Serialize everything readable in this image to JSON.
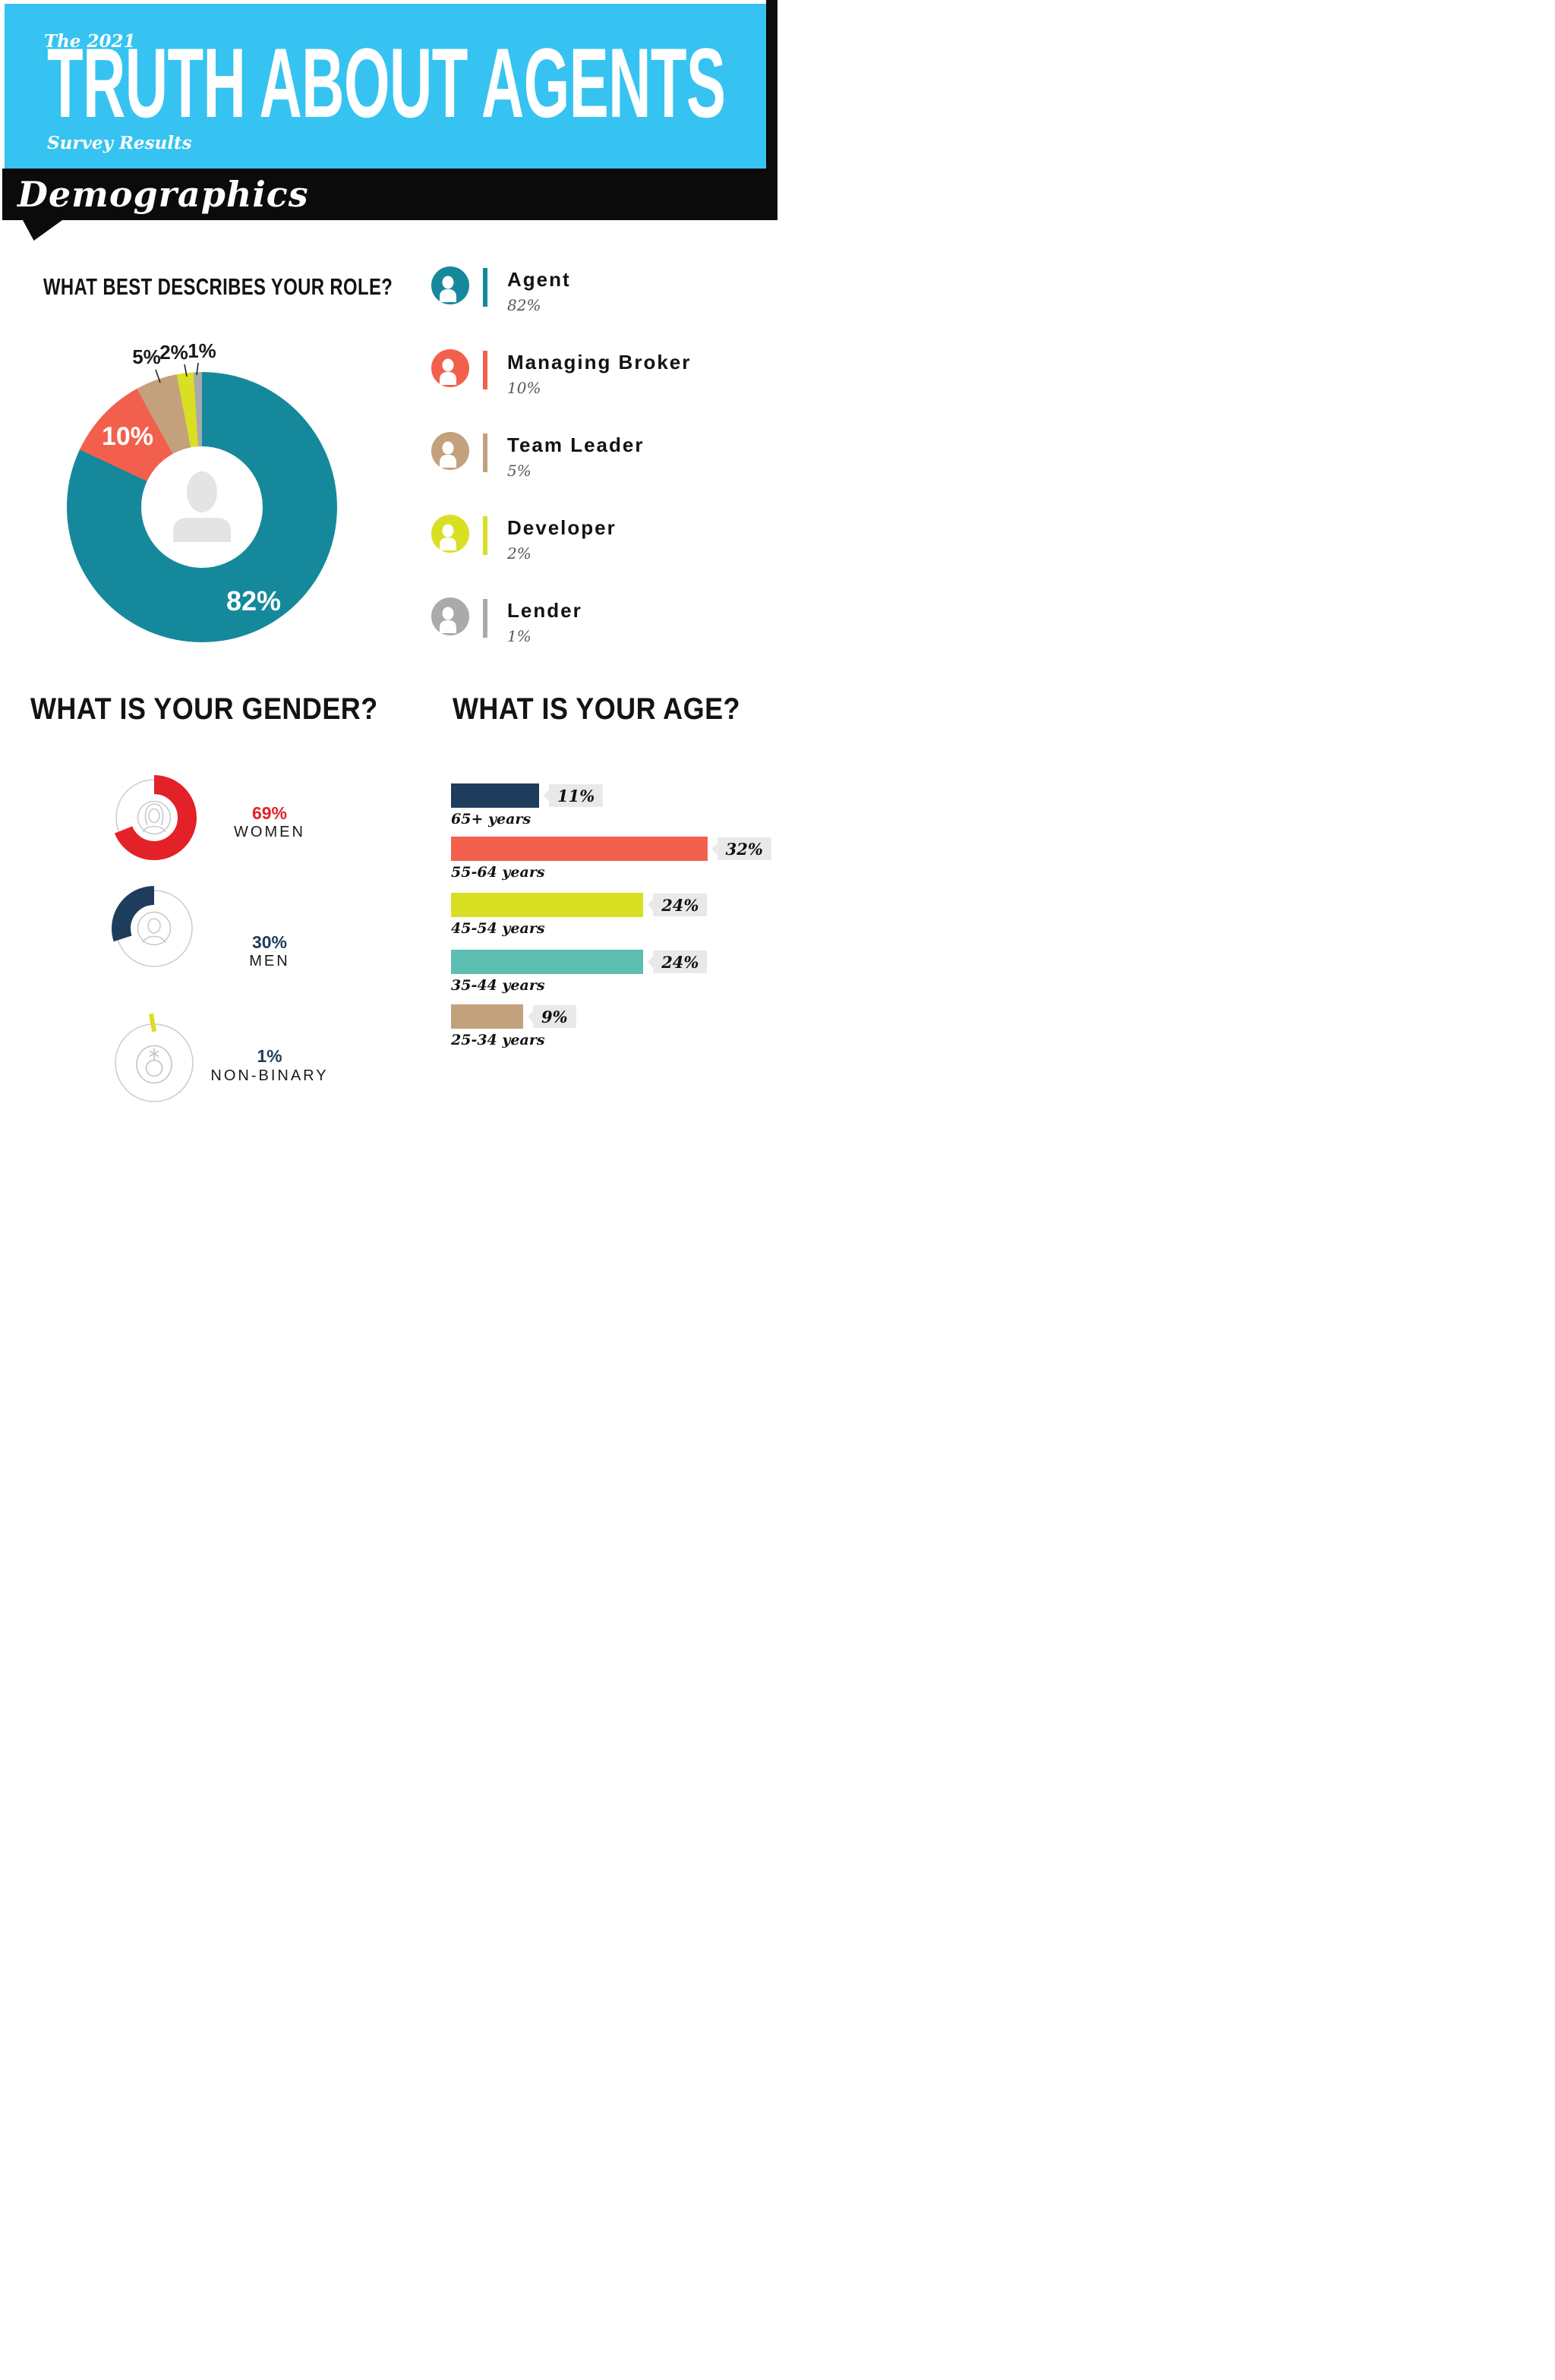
{
  "header": {
    "eyebrow": "The 2021",
    "title": "TRUTH ABOUT AGENTS",
    "subtitle": "Survey Results",
    "banner": "Demographics",
    "cyan": "#36C3F1",
    "black": "#0B0B0B"
  },
  "role": {
    "question": "WHAT BEST DESCRIBES YOUR ROLE?",
    "legend": [
      {
        "label": "Agent",
        "value": "82%",
        "pct": 82,
        "color": "#15899B"
      },
      {
        "label": "Managing Broker",
        "value": "10%",
        "pct": 10,
        "color": "#F2604D"
      },
      {
        "label": "Team Leader",
        "value": "5%",
        "pct": 5,
        "color": "#C3A17D"
      },
      {
        "label": "Developer",
        "value": "2%",
        "pct": 2,
        "color": "#D9DF22"
      },
      {
        "label": "Lender",
        "value": "1%",
        "pct": 1,
        "color": "#AAAAAC"
      }
    ]
  },
  "gender": {
    "question": "WHAT IS YOUR GENDER?",
    "items": [
      {
        "label": "WOMEN",
        "value": "69%",
        "pct": 69,
        "color": "#E32128",
        "text_color": "#E32128",
        "direction": "cw"
      },
      {
        "label": "MEN",
        "value": "30%",
        "pct": 30,
        "color": "#1E3D5C",
        "text_color": "#1E3D5C",
        "direction": "ccw"
      },
      {
        "label": "NON-BINARY",
        "value": "1%",
        "pct": 1,
        "color": "#D9DF22",
        "text_color": "#1E3D5C",
        "direction": "cw"
      }
    ]
  },
  "age": {
    "question": "WHAT IS YOUR AGE?",
    "bars": [
      {
        "label": "65+ years",
        "value": "11%",
        "pct": 11,
        "color": "#1E3D5C"
      },
      {
        "label": "55-64 years",
        "value": "32%",
        "pct": 32,
        "color": "#F2604D"
      },
      {
        "label": "45-54 years",
        "value": "24%",
        "pct": 24,
        "color": "#D9DF22"
      },
      {
        "label": "35-44 years",
        "value": "24%",
        "pct": 24,
        "color": "#5CBDB1"
      },
      {
        "label": "25-34 years",
        "value": "9%",
        "pct": 9,
        "color": "#C3A17D"
      }
    ]
  },
  "chart_data": [
    {
      "type": "pie",
      "title": "WHAT BEST DESCRIBES YOUR ROLE?",
      "categories": [
        "Agent",
        "Managing Broker",
        "Team Leader",
        "Developer",
        "Lender"
      ],
      "values": [
        82,
        10,
        5,
        2,
        1
      ],
      "colors": [
        "#15899B",
        "#F2604D",
        "#C3A17D",
        "#D9DF22",
        "#AAAAAC"
      ],
      "legend_position": "right",
      "style": "donut, starts at 12 o'clock clockwise, person icon in hole"
    },
    {
      "type": "pie",
      "title": "WHAT IS YOUR GENDER?",
      "categories": [
        "WOMEN",
        "MEN",
        "NON-BINARY"
      ],
      "values": [
        69,
        30,
        1
      ],
      "colors": [
        "#E32128",
        "#1E3D5C",
        "#D9DF22"
      ],
      "style": "three separate progress rings; women arc clockwise from top, men arc counterclockwise from top, non-binary small tick at top"
    },
    {
      "type": "bar",
      "title": "WHAT IS YOUR AGE?",
      "categories": [
        "65+ years",
        "55-64 years",
        "45-54 years",
        "35-44 years",
        "25-34 years"
      ],
      "values": [
        11,
        32,
        24,
        24,
        9
      ],
      "colors": [
        "#1E3D5C",
        "#F2604D",
        "#D9DF22",
        "#5CBDB1",
        "#C3A17D"
      ],
      "orientation": "horizontal",
      "xlim": [
        0,
        40
      ],
      "grid": false,
      "data_labels": "gray tag with left notch at bar end"
    }
  ]
}
